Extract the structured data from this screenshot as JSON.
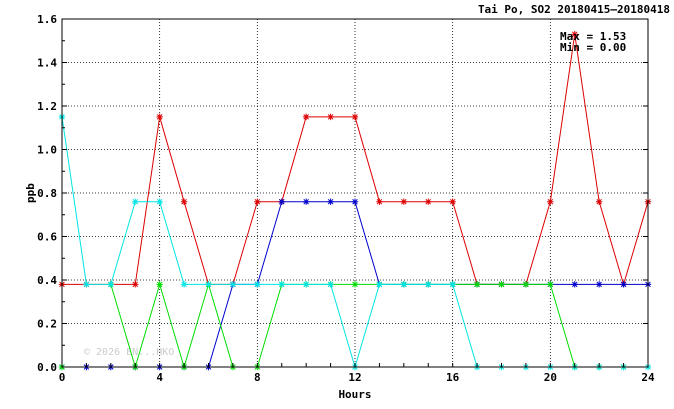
{
  "chart_data": {
    "type": "line",
    "title": "Tai Po, SO2 20180415—20180418",
    "xlabel": "Hours",
    "ylabel": "ppb",
    "xlim": [
      0,
      24
    ],
    "ylim": [
      0,
      1.6
    ],
    "x_ticks": [
      0,
      4,
      8,
      12,
      16,
      20,
      24
    ],
    "x_tick_labels": [
      "0",
      "4",
      "8",
      "12",
      "16",
      "20",
      "24"
    ],
    "y_ticks": [
      0,
      0.2,
      0.4,
      0.6,
      0.8,
      1.0,
      1.2,
      1.4,
      1.6
    ],
    "y_tick_labels": [
      "0.0",
      "0.2",
      "0.4",
      "0.6",
      "0.8",
      "1.0",
      "1.2",
      "1.4",
      "1.6"
    ],
    "grid": true,
    "annotations": [
      "Max = 1.53",
      "Min = 0.00"
    ],
    "watermark": "© 2026 EN...HKO",
    "x": [
      0,
      1,
      2,
      3,
      4,
      5,
      6,
      7,
      8,
      9,
      10,
      11,
      12,
      13,
      14,
      15,
      16,
      17,
      18,
      19,
      20,
      21,
      22,
      23,
      24
    ],
    "series": [
      {
        "color": "#dd0000",
        "values": [
          0.38,
          0.38,
          0.38,
          0.38,
          1.15,
          0.76,
          0.38,
          0.38,
          0.76,
          0.76,
          1.15,
          1.15,
          1.15,
          0.76,
          0.76,
          0.76,
          0.76,
          0.38,
          0.38,
          0.38,
          0.76,
          1.53,
          0.76,
          0.38,
          0.76
        ]
      },
      {
        "color": "#0000cc",
        "values": [
          0,
          0,
          0,
          0,
          0,
          0,
          0,
          0.38,
          0.38,
          0.76,
          0.76,
          0.76,
          0.76,
          0.38,
          0.38,
          0.38,
          0.38,
          0.38,
          0.38,
          0.38,
          0.38,
          0.38,
          0.38,
          0.38,
          0.38
        ]
      },
      {
        "color": "#00dd00",
        "values": [
          0,
          null,
          0.38,
          0,
          0.38,
          0,
          0.38,
          0,
          0,
          0.38,
          0.38,
          0.38,
          0.38,
          0.38,
          0.38,
          0.38,
          0.38,
          0.38,
          0.38,
          0.38,
          0.38,
          0,
          0,
          0,
          null
        ]
      },
      {
        "color": "#00e5e5",
        "values": [
          1.15,
          0.38,
          0.38,
          0.76,
          0.76,
          0.38,
          0.38,
          0.38,
          0.38,
          0.38,
          0.38,
          0.38,
          0,
          0.38,
          0.38,
          0.38,
          0.38,
          0,
          0,
          0,
          0,
          0,
          0,
          0,
          0
        ]
      }
    ]
  }
}
